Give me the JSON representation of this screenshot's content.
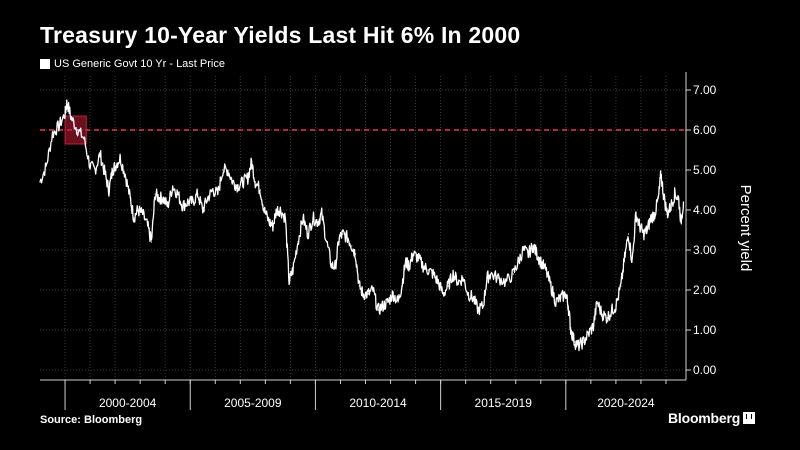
{
  "header": {
    "title": "Treasury 10-Year Yields Last Hit 6% In 2000",
    "legend_label": "US Generic Govt 10 Yr - Last Price"
  },
  "footer": {
    "source": "Source: Bloomberg",
    "brand": "Bloomberg"
  },
  "chart_data": {
    "type": "line",
    "title": "Treasury 10-Year Yields Last Hit 6% In 2000",
    "xlabel": "",
    "ylabel": "Percent yield",
    "x_ticks": [
      "2000-2004",
      "2005-2009",
      "2010-2014",
      "2015-2019",
      "2020-2024"
    ],
    "y_ticks": [
      "0.00",
      "1.00",
      "2.00",
      "3.00",
      "4.00",
      "5.00",
      "6.00",
      "7.00"
    ],
    "xlim": [
      1999.0,
      2024.8
    ],
    "ylim": [
      -0.25,
      7.35
    ],
    "grid": true,
    "colors": {
      "line": "#ffffff",
      "reference": "#e8385a",
      "highlight": "#c41e3a",
      "grid": "#3a3a3a"
    },
    "reference_line": {
      "y": 6.0,
      "style": "dashed"
    },
    "highlight_box": {
      "x": [
        2000.0,
        2000.85
      ],
      "y": [
        5.65,
        6.35
      ]
    },
    "series": [
      {
        "x": [
          1999.0,
          1999.25,
          1999.5,
          1999.75,
          2000.0,
          2000.08,
          2000.25,
          2000.5,
          2000.75,
          2001.0,
          2001.2,
          2001.4,
          2001.6,
          2001.75,
          2001.9,
          2002.0,
          2002.2,
          2002.4,
          2002.6,
          2002.75,
          2002.9,
          2003.1,
          2003.3,
          2003.45,
          2003.6,
          2003.75,
          2003.9,
          2004.1,
          2004.3,
          2004.5,
          2004.7,
          2004.9,
          2005.1,
          2005.3,
          2005.5,
          2005.7,
          2005.9,
          2006.1,
          2006.3,
          2006.5,
          2006.7,
          2006.9,
          2007.1,
          2007.3,
          2007.45,
          2007.6,
          2007.8,
          2007.95,
          2008.15,
          2008.3,
          2008.45,
          2008.6,
          2008.8,
          2008.95,
          2009.1,
          2009.3,
          2009.5,
          2009.7,
          2009.9,
          2010.1,
          2010.25,
          2010.45,
          2010.65,
          2010.8,
          2010.95,
          2011.1,
          2011.3,
          2011.45,
          2011.6,
          2011.75,
          2011.9,
          2012.1,
          2012.3,
          2012.5,
          2012.7,
          2012.9,
          2013.1,
          2013.3,
          2013.45,
          2013.6,
          2013.75,
          2013.9,
          2014.1,
          2014.3,
          2014.5,
          2014.7,
          2014.9,
          2015.1,
          2015.3,
          2015.5,
          2015.7,
          2015.9,
          2016.1,
          2016.3,
          2016.5,
          2016.7,
          2016.85,
          2017.0,
          2017.3,
          2017.6,
          2017.9,
          2018.1,
          2018.3,
          2018.5,
          2018.7,
          2018.85,
          2019.0,
          2019.2,
          2019.4,
          2019.6,
          2019.8,
          2020.0,
          2020.1,
          2020.2,
          2020.35,
          2020.5,
          2020.7,
          2020.9,
          2021.1,
          2021.25,
          2021.45,
          2021.65,
          2021.85,
          2022.0,
          2022.2,
          2022.35,
          2022.5,
          2022.65,
          2022.8,
          2022.95,
          2023.1,
          2023.25,
          2023.4,
          2023.55,
          2023.7,
          2023.8,
          2023.9,
          2024.05,
          2024.2,
          2024.35,
          2024.5,
          2024.6,
          2024.7
        ],
        "values": [
          4.7,
          5.1,
          5.9,
          6.1,
          6.4,
          6.7,
          6.3,
          6.0,
          5.8,
          5.1,
          5.0,
          5.4,
          4.9,
          4.5,
          5.0,
          5.1,
          5.3,
          4.9,
          4.3,
          3.8,
          4.0,
          3.9,
          3.6,
          3.2,
          4.4,
          4.3,
          4.3,
          4.1,
          4.6,
          4.4,
          4.1,
          4.2,
          4.2,
          4.4,
          4.0,
          4.3,
          4.5,
          4.4,
          5.0,
          5.0,
          4.7,
          4.6,
          4.7,
          4.8,
          5.2,
          4.7,
          4.5,
          4.0,
          3.7,
          3.6,
          4.0,
          4.0,
          3.8,
          2.2,
          2.5,
          3.2,
          3.8,
          3.4,
          3.8,
          3.7,
          3.9,
          3.2,
          2.6,
          2.6,
          3.3,
          3.4,
          3.3,
          3.1,
          2.9,
          2.1,
          1.9,
          1.9,
          2.0,
          1.5,
          1.6,
          1.7,
          1.9,
          1.7,
          2.1,
          2.7,
          2.6,
          2.9,
          2.8,
          2.6,
          2.5,
          2.4,
          2.2,
          1.9,
          2.1,
          2.4,
          2.2,
          2.3,
          1.9,
          1.8,
          1.5,
          1.6,
          2.3,
          2.4,
          2.3,
          2.2,
          2.4,
          2.7,
          3.0,
          2.9,
          3.1,
          2.9,
          2.7,
          2.5,
          2.1,
          1.7,
          1.8,
          1.9,
          1.6,
          1.0,
          0.7,
          0.6,
          0.7,
          0.9,
          1.1,
          1.7,
          1.4,
          1.3,
          1.5,
          1.6,
          2.1,
          2.8,
          3.4,
          2.7,
          3.9,
          3.6,
          3.4,
          3.5,
          3.8,
          3.9,
          4.3,
          4.9,
          4.4,
          3.9,
          4.1,
          4.4,
          4.3,
          3.7,
          4.2
        ]
      }
    ]
  }
}
